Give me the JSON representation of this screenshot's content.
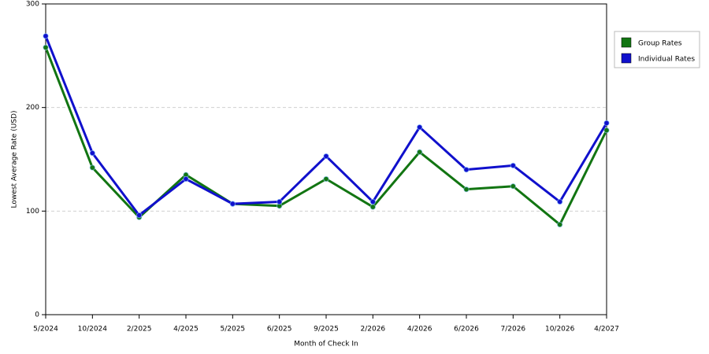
{
  "chart_data": {
    "type": "line",
    "x_label": "Month of Check In",
    "y_label": "Lowest Average Rate (USD)",
    "categories": [
      "5/2024",
      "10/2024",
      "2/2025",
      "4/2025",
      "5/2025",
      "6/2025",
      "9/2025",
      "2/2026",
      "4/2026",
      "6/2026",
      "7/2026",
      "10/2026",
      "4/2027"
    ],
    "series": [
      {
        "name": "Group Rates",
        "color": "#127512",
        "values": [
          258,
          142,
          94,
          135,
          107,
          105,
          131,
          104,
          157,
          121,
          124,
          87,
          178
        ]
      },
      {
        "name": "Individual Rates",
        "color": "#1010cc",
        "values": [
          269,
          156,
          96,
          131,
          107,
          109,
          153,
          109,
          181,
          140,
          144,
          109,
          185
        ]
      }
    ],
    "ylim": [
      0,
      300
    ],
    "yticks": [
      0,
      100,
      200,
      300
    ],
    "grid": true,
    "legend": "right"
  }
}
